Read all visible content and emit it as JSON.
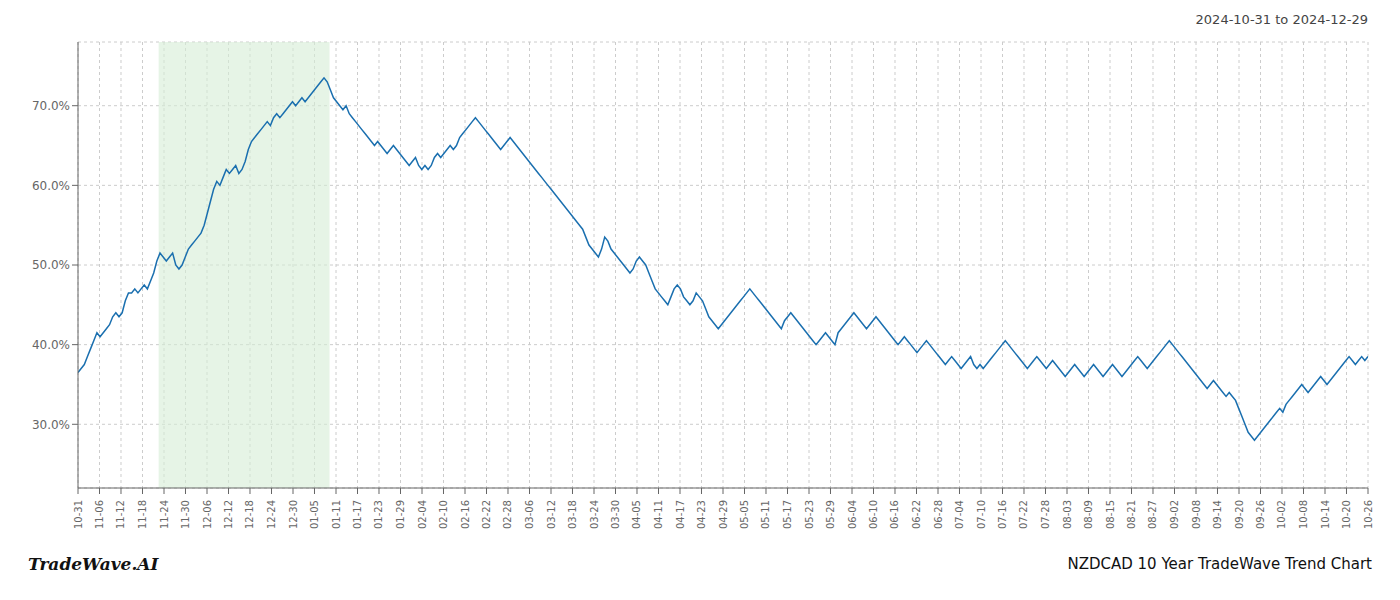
{
  "chart_data": {
    "type": "line",
    "title": "NZDCAD 10 Year TradeWave Trend Chart",
    "subtitle": "2024-10-31 to 2024-12-29",
    "annotations": [
      "TradeWave.AI"
    ],
    "color": "#1a6faf",
    "grid": true,
    "highlight": {
      "x": [
        25.5625,
        79.755
      ],
      "color": "#d6ecd6"
    },
    "xlim": [
      0,
      409
    ],
    "xticks": [
      {
        "value": 0,
        "label": "10-31"
      },
      {
        "value": 6.8167,
        "label": "11-06"
      },
      {
        "value": 13.6333,
        "label": "11-12"
      },
      {
        "value": 20.45,
        "label": "11-18"
      },
      {
        "value": 27.2667,
        "label": "11-24"
      },
      {
        "value": 34.0833,
        "label": "11-30"
      },
      {
        "value": 40.9,
        "label": "12-06"
      },
      {
        "value": 47.7167,
        "label": "12-12"
      },
      {
        "value": 54.5333,
        "label": "12-18"
      },
      {
        "value": 61.35,
        "label": "12-24"
      },
      {
        "value": 68.1667,
        "label": "12-30"
      },
      {
        "value": 74.9833,
        "label": "01-05"
      },
      {
        "value": 81.8,
        "label": "01-11"
      },
      {
        "value": 88.6167,
        "label": "01-17"
      },
      {
        "value": 95.4333,
        "label": "01-23"
      },
      {
        "value": 102.25,
        "label": "01-29"
      },
      {
        "value": 109.0667,
        "label": "02-04"
      },
      {
        "value": 115.8833,
        "label": "02-10"
      },
      {
        "value": 122.7,
        "label": "02-16"
      },
      {
        "value": 129.5167,
        "label": "02-22"
      },
      {
        "value": 136.3333,
        "label": "02-28"
      },
      {
        "value": 143.15,
        "label": "03-06"
      },
      {
        "value": 149.9667,
        "label": "03-12"
      },
      {
        "value": 156.7833,
        "label": "03-18"
      },
      {
        "value": 163.6,
        "label": "03-24"
      },
      {
        "value": 170.4167,
        "label": "03-30"
      },
      {
        "value": 177.2333,
        "label": "04-05"
      },
      {
        "value": 184.05,
        "label": "04-11"
      },
      {
        "value": 190.8667,
        "label": "04-17"
      },
      {
        "value": 197.6833,
        "label": "04-23"
      },
      {
        "value": 204.5,
        "label": "04-29"
      },
      {
        "value": 211.3167,
        "label": "05-05"
      },
      {
        "value": 218.1333,
        "label": "05-11"
      },
      {
        "value": 224.95,
        "label": "05-17"
      },
      {
        "value": 231.7667,
        "label": "05-23"
      },
      {
        "value": 238.5833,
        "label": "05-29"
      },
      {
        "value": 245.4,
        "label": "06-04"
      },
      {
        "value": 252.2167,
        "label": "06-10"
      },
      {
        "value": 259.0333,
        "label": "06-16"
      },
      {
        "value": 265.85,
        "label": "06-22"
      },
      {
        "value": 272.6667,
        "label": "06-28"
      },
      {
        "value": 279.4833,
        "label": "07-04"
      },
      {
        "value": 286.3,
        "label": "07-10"
      },
      {
        "value": 293.1167,
        "label": "07-16"
      },
      {
        "value": 299.9333,
        "label": "07-22"
      },
      {
        "value": 306.75,
        "label": "07-28"
      },
      {
        "value": 313.5667,
        "label": "08-03"
      },
      {
        "value": 320.3833,
        "label": "08-09"
      },
      {
        "value": 327.2,
        "label": "08-15"
      },
      {
        "value": 334.0167,
        "label": "08-21"
      },
      {
        "value": 340.8333,
        "label": "08-27"
      },
      {
        "value": 347.65,
        "label": "09-02"
      },
      {
        "value": 354.4667,
        "label": "09-08"
      },
      {
        "value": 361.2833,
        "label": "09-14"
      },
      {
        "value": 368.1,
        "label": "09-20"
      },
      {
        "value": 374.9167,
        "label": "09-26"
      },
      {
        "value": 381.7333,
        "label": "10-02"
      },
      {
        "value": 388.55,
        "label": "10-08"
      },
      {
        "value": 395.3667,
        "label": "10-14"
      },
      {
        "value": 402.1833,
        "label": "10-20"
      },
      {
        "value": 409,
        "label": "10-26"
      }
    ],
    "ylim": [
      22,
      78
    ],
    "yticks": [
      {
        "value": 30.0,
        "label": "30.0%"
      },
      {
        "value": 40.0,
        "label": "40.0%"
      },
      {
        "value": 50.0,
        "label": "50.0%"
      },
      {
        "value": 60.0,
        "label": "60.0%"
      },
      {
        "value": 70.0,
        "label": "70.0%"
      }
    ],
    "x": [
      0,
      1,
      2,
      3,
      4,
      5,
      6,
      7,
      8,
      9,
      10,
      11,
      12,
      13,
      14,
      15,
      16,
      17,
      18,
      19,
      20,
      21,
      22,
      23,
      24,
      25,
      26,
      27,
      28,
      29,
      30,
      31,
      32,
      33,
      34,
      35,
      36,
      37,
      38,
      39,
      40,
      41,
      42,
      43,
      44,
      45,
      46,
      47,
      48,
      49,
      50,
      51,
      52,
      53,
      54,
      55,
      56,
      57,
      58,
      59,
      60,
      61,
      62,
      63,
      64,
      65,
      66,
      67,
      68,
      69,
      70,
      71,
      72,
      73,
      74,
      75,
      76,
      77,
      78,
      79,
      80,
      81,
      82,
      83,
      84,
      85,
      86,
      87,
      88,
      89,
      90,
      91,
      92,
      93,
      94,
      95,
      96,
      97,
      98,
      99,
      100,
      101,
      102,
      103,
      104,
      105,
      106,
      107,
      108,
      109,
      110,
      111,
      112,
      113,
      114,
      115,
      116,
      117,
      118,
      119,
      120,
      121,
      122,
      123,
      124,
      125,
      126,
      127,
      128,
      129,
      130,
      131,
      132,
      133,
      134,
      135,
      136,
      137,
      138,
      139,
      140,
      141,
      142,
      143,
      144,
      145,
      146,
      147,
      148,
      149,
      150,
      151,
      152,
      153,
      154,
      155,
      156,
      157,
      158,
      159,
      160,
      161,
      162,
      163,
      164,
      165,
      166,
      167,
      168,
      169,
      170,
      171,
      172,
      173,
      174,
      175,
      176,
      177,
      178,
      179,
      180,
      181,
      182,
      183,
      184,
      185,
      186,
      187,
      188,
      189,
      190,
      191,
      192,
      193,
      194,
      195,
      196,
      197,
      198,
      199,
      200,
      201,
      202,
      203,
      204,
      205,
      206,
      207,
      208,
      209,
      210,
      211,
      212,
      213,
      214,
      215,
      216,
      217,
      218,
      219,
      220,
      221,
      222,
      223,
      224,
      225,
      226,
      227,
      228,
      229,
      230,
      231,
      232,
      233,
      234,
      235,
      236,
      237,
      238,
      239,
      240,
      241,
      242,
      243,
      244,
      245,
      246,
      247,
      248,
      249,
      250,
      251,
      252,
      253,
      254,
      255,
      256,
      257,
      258,
      259,
      260,
      261,
      262,
      263,
      264,
      265,
      266,
      267,
      268,
      269,
      270,
      271,
      272,
      273,
      274,
      275,
      276,
      277,
      278,
      279,
      280,
      281,
      282,
      283,
      284,
      285,
      286,
      287,
      288,
      289,
      290,
      291,
      292,
      293,
      294,
      295,
      296,
      297,
      298,
      299,
      300,
      301,
      302,
      303,
      304,
      305,
      306,
      307,
      308,
      309,
      310,
      311,
      312,
      313,
      314,
      315,
      316,
      317,
      318,
      319,
      320,
      321,
      322,
      323,
      324,
      325,
      326,
      327,
      328,
      329,
      330,
      331,
      332,
      333,
      334,
      335,
      336,
      337,
      338,
      339,
      340,
      341,
      342,
      343,
      344,
      345,
      346,
      347,
      348,
      349,
      350,
      351,
      352,
      353,
      354,
      355,
      356,
      357,
      358,
      359,
      360,
      361,
      362,
      363,
      364,
      365,
      366,
      367,
      368,
      369,
      370,
      371,
      372,
      373,
      374,
      375,
      376,
      377,
      378,
      379,
      380,
      381,
      382,
      383,
      384,
      385,
      386,
      387,
      388,
      389,
      390,
      391,
      392,
      393,
      394,
      395,
      396,
      397,
      398,
      399,
      400,
      401,
      402,
      403,
      404,
      405,
      406,
      407,
      408,
      409
    ],
    "values": [
      36.5,
      37.0,
      37.5,
      38.5,
      39.5,
      40.5,
      41.5,
      41.0,
      41.5,
      42.0,
      42.5,
      43.5,
      44.0,
      43.5,
      44.0,
      45.5,
      46.5,
      46.5,
      47.0,
      46.5,
      47.0,
      47.5,
      47.0,
      48.0,
      49.0,
      50.5,
      51.5,
      51.0,
      50.5,
      51.0,
      51.5,
      50.0,
      49.5,
      50.0,
      51.0,
      52.0,
      52.5,
      53.0,
      53.5,
      54.0,
      55.0,
      56.5,
      58.0,
      59.5,
      60.5,
      60.0,
      61.0,
      62.0,
      61.5,
      62.0,
      62.5,
      61.5,
      62.0,
      63.0,
      64.5,
      65.5,
      66.0,
      66.5,
      67.0,
      67.5,
      68.0,
      67.5,
      68.5,
      69.0,
      68.5,
      69.0,
      69.5,
      70.0,
      70.5,
      70.0,
      70.5,
      71.0,
      70.5,
      71.0,
      71.5,
      72.0,
      72.5,
      73.0,
      73.5,
      73.0,
      72.0,
      71.0,
      70.5,
      70.0,
      69.5,
      70.0,
      69.0,
      68.5,
      68.0,
      67.5,
      67.0,
      66.5,
      66.0,
      65.5,
      65.0,
      65.5,
      65.0,
      64.5,
      64.0,
      64.5,
      65.0,
      64.5,
      64.0,
      63.5,
      63.0,
      62.5,
      63.0,
      63.5,
      62.5,
      62.0,
      62.5,
      62.0,
      62.5,
      63.5,
      64.0,
      63.5,
      64.0,
      64.5,
      65.0,
      64.5,
      65.0,
      66.0,
      66.5,
      67.0,
      67.5,
      68.0,
      68.5,
      68.0,
      67.5,
      67.0,
      66.5,
      66.0,
      65.5,
      65.0,
      64.5,
      65.0,
      65.5,
      66.0,
      65.5,
      65.0,
      64.5,
      64.0,
      63.5,
      63.0,
      62.5,
      62.0,
      61.5,
      61.0,
      60.5,
      60.0,
      59.5,
      59.0,
      58.5,
      58.0,
      57.5,
      57.0,
      56.5,
      56.0,
      55.5,
      55.0,
      54.5,
      53.5,
      52.5,
      52.0,
      51.5,
      51.0,
      52.0,
      53.5,
      53.0,
      52.0,
      51.5,
      51.0,
      50.5,
      50.0,
      49.5,
      49.0,
      49.5,
      50.5,
      51.0,
      50.5,
      50.0,
      49.0,
      48.0,
      47.0,
      46.5,
      46.0,
      45.5,
      45.0,
      46.0,
      47.0,
      47.5,
      47.0,
      46.0,
      45.5,
      45.0,
      45.5,
      46.5,
      46.0,
      45.5,
      44.5,
      43.5,
      43.0,
      42.5,
      42.0,
      42.5,
      43.0,
      43.5,
      44.0,
      44.5,
      45.0,
      45.5,
      46.0,
      46.5,
      47.0,
      46.5,
      46.0,
      45.5,
      45.0,
      44.5,
      44.0,
      43.5,
      43.0,
      42.5,
      42.0,
      43.0,
      43.5,
      44.0,
      43.5,
      43.0,
      42.5,
      42.0,
      41.5,
      41.0,
      40.5,
      40.0,
      40.5,
      41.0,
      41.5,
      41.0,
      40.5,
      40.0,
      41.5,
      42.0,
      42.5,
      43.0,
      43.5,
      44.0,
      43.5,
      43.0,
      42.5,
      42.0,
      42.5,
      43.0,
      43.5,
      43.0,
      42.5,
      42.0,
      41.5,
      41.0,
      40.5,
      40.0,
      40.5,
      41.0,
      40.5,
      40.0,
      39.5,
      39.0,
      39.5,
      40.0,
      40.5,
      40.0,
      39.5,
      39.0,
      38.5,
      38.0,
      37.5,
      38.0,
      38.5,
      38.0,
      37.5,
      37.0,
      37.5,
      38.0,
      38.5,
      37.5,
      37.0,
      37.5,
      37.0,
      37.5,
      38.0,
      38.5,
      39.0,
      39.5,
      40.0,
      40.5,
      40.0,
      39.5,
      39.0,
      38.5,
      38.0,
      37.5,
      37.0,
      37.5,
      38.0,
      38.5,
      38.0,
      37.5,
      37.0,
      37.5,
      38.0,
      37.5,
      37.0,
      36.5,
      36.0,
      36.5,
      37.0,
      37.5,
      37.0,
      36.5,
      36.0,
      36.5,
      37.0,
      37.5,
      37.0,
      36.5,
      36.0,
      36.5,
      37.0,
      37.5,
      37.0,
      36.5,
      36.0,
      36.5,
      37.0,
      37.5,
      38.0,
      38.5,
      38.0,
      37.5,
      37.0,
      37.5,
      38.0,
      38.5,
      39.0,
      39.5,
      40.0,
      40.5,
      40.0,
      39.5,
      39.0,
      38.5,
      38.0,
      37.5,
      37.0,
      36.5,
      36.0,
      35.5,
      35.0,
      34.5,
      35.0,
      35.5,
      35.0,
      34.5,
      34.0,
      33.5,
      34.0,
      33.5,
      33.0,
      32.0,
      31.0,
      30.0,
      29.0,
      28.5,
      28.0,
      28.5,
      29.0,
      29.5,
      30.0,
      30.5,
      31.0,
      31.5,
      32.0,
      31.5,
      32.5,
      33.0,
      33.5,
      34.0,
      34.5,
      35.0,
      34.5,
      34.0,
      34.5,
      35.0,
      35.5,
      36.0,
      35.5,
      35.0,
      35.5,
      36.0,
      36.5,
      37.0,
      37.5,
      38.0,
      38.5,
      38.0,
      37.5,
      38.0,
      38.5,
      38.0,
      38.5
    ]
  }
}
